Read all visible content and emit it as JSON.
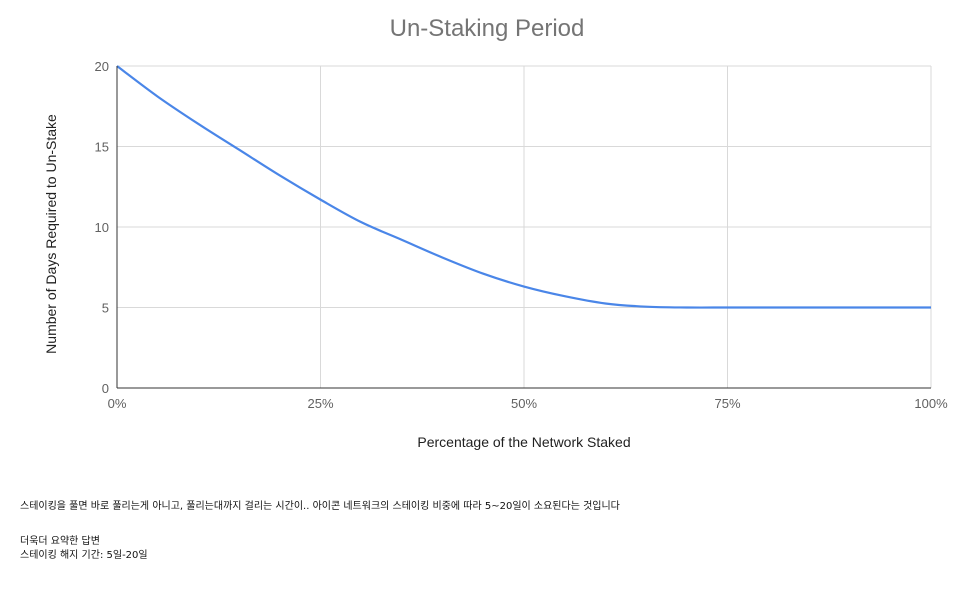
{
  "chart_data": {
    "type": "line",
    "title": "Un-Staking Period",
    "xlabel": "Percentage of the Network Staked",
    "ylabel": "Number of Days Required to Un-Stake",
    "xlim": [
      0,
      100
    ],
    "ylim": [
      0,
      20
    ],
    "x_ticks": [
      "0%",
      "25%",
      "50%",
      "75%",
      "100%"
    ],
    "y_ticks": [
      "0",
      "5",
      "10",
      "15",
      "20"
    ],
    "grid": true,
    "series": [
      {
        "color": "#4a86e8",
        "x": [
          0,
          5,
          10,
          15,
          20,
          25,
          30,
          35,
          40,
          45,
          50,
          55,
          60,
          65,
          70,
          75,
          80,
          85,
          90,
          95,
          100
        ],
        "y": [
          20,
          18.1,
          16.4,
          14.8,
          13.2,
          11.7,
          10.3,
          9.2,
          8.1,
          7.1,
          6.3,
          5.7,
          5.25,
          5.05,
          5.0,
          5.0,
          5.0,
          5.0,
          5.0,
          5.0,
          5.0
        ]
      }
    ]
  },
  "notes": {
    "line1": "스테이킹을 풀면 바로 풀리는게 아니고, 풀리는대까지 걸리는 시간이.. 아이콘 네트워크의 스테이킹 비중에 따라 5~20일이 소요된다는 것입니다",
    "line2": "더욱더 요약한 답변",
    "line3": "스테이킹 해지 기간: 5일-20일"
  }
}
